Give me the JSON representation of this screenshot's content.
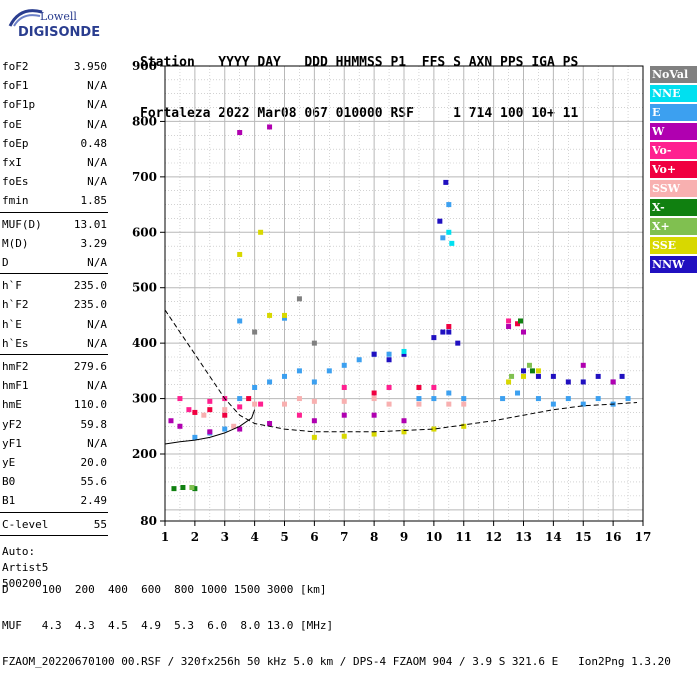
{
  "logo": {
    "line1": "Lowell",
    "line2": "DIGISONDE"
  },
  "header": {
    "line1": "Station   YYYY DAY   DDD HHMMSS P1  FFS S AXN PPS IGA PS",
    "line2": "Fortaleza 2022 Mar08 067 010000 RSF     1 714 100 10+ 11"
  },
  "params": {
    "group1": [
      {
        "name": "foF2",
        "value": "3.950"
      },
      {
        "name": "foF1",
        "value": "N/A"
      },
      {
        "name": "foF1p",
        "value": "N/A"
      },
      {
        "name": "foE",
        "value": "N/A"
      },
      {
        "name": "foEp",
        "value": "0.48"
      },
      {
        "name": "fxI",
        "value": "N/A"
      },
      {
        "name": "foEs",
        "value": "N/A"
      },
      {
        "name": "fmin",
        "value": "1.85"
      }
    ],
    "group2": [
      {
        "name": "MUF(D)",
        "value": "13.01"
      },
      {
        "name": "M(D)",
        "value": "3.29"
      },
      {
        "name": "D",
        "value": "N/A"
      }
    ],
    "group3": [
      {
        "name": "h`F",
        "value": "235.0"
      },
      {
        "name": "h`F2",
        "value": "235.0"
      },
      {
        "name": "h`E",
        "value": "N/A"
      },
      {
        "name": "h`Es",
        "value": "N/A"
      }
    ],
    "group4": [
      {
        "name": "hmF2",
        "value": "279.6"
      },
      {
        "name": "hmF1",
        "value": "N/A"
      },
      {
        "name": "hmE",
        "value": "110.0"
      },
      {
        "name": "yF2",
        "value": "59.8"
      },
      {
        "name": "yF1",
        "value": "N/A"
      },
      {
        "name": "yE",
        "value": "20.0"
      },
      {
        "name": "B0",
        "value": "55.6"
      },
      {
        "name": "B1",
        "value": "2.49"
      }
    ],
    "group5": [
      {
        "name": "C-level",
        "value": "55"
      }
    ],
    "auto": [
      "Auto:",
      "Artist5",
      "500200"
    ]
  },
  "legend": [
    {
      "label": "NoVal",
      "bg": "#808080",
      "fg": "#ffffff"
    },
    {
      "label": "NNE",
      "bg": "#00e0f0",
      "fg": "#ffffff"
    },
    {
      "label": "E",
      "bg": "#3ca0f0",
      "fg": "#ffffff"
    },
    {
      "label": "W",
      "bg": "#b000b0",
      "fg": "#ffffff"
    },
    {
      "label": "Vo-",
      "bg": "#ff2090",
      "fg": "#ffffff"
    },
    {
      "label": "Vo+",
      "bg": "#f00040",
      "fg": "#ffffff"
    },
    {
      "label": "SSW",
      "bg": "#f8b0b0",
      "fg": "#ffffff"
    },
    {
      "label": "X-",
      "bg": "#108010",
      "fg": "#ffffff"
    },
    {
      "label": "X+",
      "bg": "#80c050",
      "fg": "#ffffff"
    },
    {
      "label": "SSE",
      "bg": "#d8d800",
      "fg": "#ffffff"
    },
    {
      "label": "NNW",
      "bg": "#2010c0",
      "fg": "#ffffff"
    }
  ],
  "chart_data": {
    "type": "scatter",
    "xlabel": "",
    "ylabel": "",
    "xlim": [
      1,
      17
    ],
    "ylim": [
      80,
      900
    ],
    "x_ticks": [
      "1",
      "2",
      "3",
      "4",
      "5",
      "6",
      "7",
      "8",
      "9",
      "10",
      "11",
      "12",
      "13",
      "14",
      "15",
      "16",
      "17"
    ],
    "y_ticks": [
      "900",
      "800",
      "700",
      "600",
      "500",
      "400",
      "300",
      "200",
      "80"
    ],
    "series": [
      {
        "name": "E",
        "color": "#3ca0f0",
        "points": [
          [
            2.0,
            230
          ],
          [
            2.5,
            238
          ],
          [
            3.0,
            245
          ],
          [
            3.5,
            300
          ],
          [
            4.0,
            320
          ],
          [
            4.5,
            330
          ],
          [
            5.0,
            340
          ],
          [
            5.5,
            350
          ],
          [
            6.0,
            330
          ],
          [
            6.5,
            350
          ],
          [
            7.0,
            360
          ],
          [
            7.5,
            370
          ],
          [
            8.0,
            380
          ],
          [
            8.5,
            380
          ],
          [
            9.0,
            380
          ],
          [
            9.5,
            300
          ],
          [
            10.0,
            300
          ],
          [
            10.5,
            310
          ],
          [
            11.0,
            300
          ],
          [
            12.3,
            300
          ],
          [
            12.8,
            310
          ],
          [
            13.5,
            300
          ],
          [
            14.0,
            290
          ],
          [
            14.5,
            300
          ],
          [
            15.0,
            290
          ],
          [
            15.5,
            300
          ],
          [
            16.0,
            290
          ],
          [
            16.5,
            300
          ],
          [
            5.0,
            445
          ],
          [
            3.5,
            440
          ],
          [
            10.5,
            650
          ],
          [
            10.3,
            590
          ]
        ]
      },
      {
        "name": "NNW",
        "color": "#2010c0",
        "points": [
          [
            8.0,
            380
          ],
          [
            8.5,
            370
          ],
          [
            9.0,
            380
          ],
          [
            10.0,
            410
          ],
          [
            10.3,
            420
          ],
          [
            10.5,
            420
          ],
          [
            10.8,
            400
          ],
          [
            13.0,
            350
          ],
          [
            13.5,
            340
          ],
          [
            14.0,
            340
          ],
          [
            14.5,
            330
          ],
          [
            15.0,
            330
          ],
          [
            15.5,
            340
          ],
          [
            16.0,
            330
          ],
          [
            16.3,
            340
          ],
          [
            10.2,
            620
          ],
          [
            10.4,
            690
          ]
        ]
      },
      {
        "name": "SSW",
        "color": "#f8b0b0",
        "points": [
          [
            2.3,
            270
          ],
          [
            3.0,
            280
          ],
          [
            4.0,
            290
          ],
          [
            5.0,
            290
          ],
          [
            5.5,
            300
          ],
          [
            6.0,
            295
          ],
          [
            7.0,
            295
          ],
          [
            8.0,
            300
          ],
          [
            8.5,
            290
          ],
          [
            9.5,
            290
          ],
          [
            10.5,
            290
          ],
          [
            11.0,
            290
          ],
          [
            3.3,
            250
          ]
        ]
      },
      {
        "name": "W",
        "color": "#b000b0",
        "points": [
          [
            1.2,
            260
          ],
          [
            1.5,
            250
          ],
          [
            2.5,
            240
          ],
          [
            3.5,
            245
          ],
          [
            4.5,
            255
          ],
          [
            6.0,
            260
          ],
          [
            7.0,
            270
          ],
          [
            8.0,
            270
          ],
          [
            9.0,
            260
          ],
          [
            12.5,
            430
          ],
          [
            13.0,
            420
          ],
          [
            15.0,
            360
          ],
          [
            16.0,
            330
          ],
          [
            3.5,
            780
          ],
          [
            4.5,
            790
          ]
        ]
      },
      {
        "name": "Vo-",
        "color": "#ff2090",
        "points": [
          [
            1.5,
            300
          ],
          [
            1.8,
            280
          ],
          [
            2.5,
            295
          ],
          [
            3.0,
            300
          ],
          [
            3.5,
            285
          ],
          [
            4.2,
            290
          ],
          [
            5.5,
            270
          ],
          [
            7.0,
            320
          ],
          [
            8.5,
            320
          ],
          [
            10.0,
            320
          ],
          [
            12.5,
            440
          ]
        ]
      },
      {
        "name": "Vo+",
        "color": "#f00040",
        "points": [
          [
            2.0,
            275
          ],
          [
            2.5,
            280
          ],
          [
            3.0,
            270
          ],
          [
            3.8,
            300
          ],
          [
            8.0,
            310
          ],
          [
            9.5,
            320
          ],
          [
            10.5,
            430
          ],
          [
            12.8,
            435
          ]
        ]
      },
      {
        "name": "SSE",
        "color": "#d8d800",
        "points": [
          [
            4.5,
            450
          ],
          [
            5.0,
            450
          ],
          [
            6.0,
            230
          ],
          [
            7.0,
            232
          ],
          [
            8.0,
            236
          ],
          [
            9.0,
            240
          ],
          [
            10.0,
            245
          ],
          [
            11.0,
            250
          ],
          [
            13.0,
            340
          ],
          [
            13.5,
            350
          ],
          [
            12.5,
            330
          ],
          [
            3.5,
            560
          ],
          [
            4.2,
            600
          ]
        ]
      },
      {
        "name": "X-",
        "color": "#108010",
        "points": [
          [
            1.3,
            138
          ],
          [
            1.6,
            140
          ],
          [
            2.0,
            138
          ],
          [
            12.9,
            440
          ],
          [
            13.3,
            350
          ]
        ]
      },
      {
        "name": "X+",
        "color": "#80c050",
        "points": [
          [
            1.9,
            140
          ],
          [
            13.2,
            360
          ],
          [
            12.6,
            340
          ]
        ]
      },
      {
        "name": "NNE",
        "color": "#00e0f0",
        "points": [
          [
            10.5,
            600
          ],
          [
            10.6,
            580
          ],
          [
            9.0,
            385
          ]
        ]
      },
      {
        "name": "NoVal",
        "color": "#808080",
        "points": [
          [
            4.0,
            420
          ],
          [
            5.5,
            480
          ],
          [
            6.0,
            400
          ]
        ]
      }
    ],
    "traces": [
      {
        "name": "dashed-profile",
        "points": [
          [
            1.0,
            460
          ],
          [
            1.5,
            420
          ],
          [
            2.0,
            380
          ],
          [
            2.5,
            340
          ],
          [
            3.0,
            300
          ],
          [
            3.5,
            270
          ],
          [
            4.0,
            255
          ],
          [
            5.0,
            245
          ],
          [
            6.0,
            240
          ],
          [
            8.0,
            240
          ],
          [
            10.0,
            245
          ],
          [
            12.0,
            260
          ],
          [
            13.0,
            270
          ],
          [
            14.0,
            280
          ],
          [
            15.0,
            287
          ],
          [
            16.0,
            290
          ],
          [
            16.8,
            293
          ]
        ]
      },
      {
        "name": "solid-profile",
        "points": [
          [
            1.0,
            218
          ],
          [
            1.5,
            222
          ],
          [
            2.0,
            225
          ],
          [
            2.5,
            230
          ],
          [
            3.0,
            238
          ],
          [
            3.5,
            250
          ],
          [
            3.9,
            265
          ],
          [
            4.0,
            280
          ]
        ]
      }
    ]
  },
  "footer": {
    "line1": "D     100  200  400  600  800 1000 1500 3000 [km]",
    "line2": "MUF   4.3  4.3  4.5  4.9  5.3  6.0  8.0 13.0 [MHz]",
    "line3": "FZAOM_20220670100 00.RSF / 320fx256h 50 kHz 5.0 km / DPS-4 FZAOM 904 / 3.9 S 321.6 E   Ion2Png 1.3.20"
  }
}
